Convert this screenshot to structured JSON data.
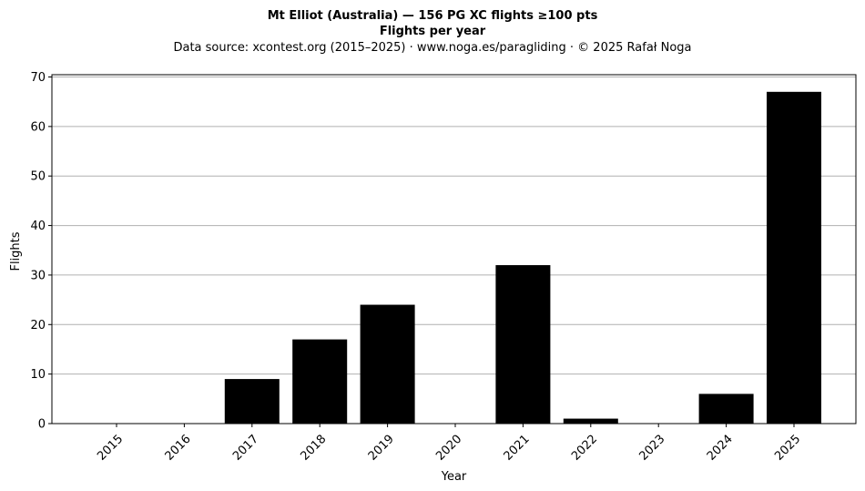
{
  "chart_data": {
    "type": "bar",
    "title": "Mt Elliot (Australia)  —  156 PG XC flights ≥100 pts",
    "title2": "Flights per year",
    "subtitle": "Data source: xcontest.org (2015–2025)  ·  www.noga.es/paragliding  ·  © 2025 Rafał Noga",
    "xlabel": "Year",
    "ylabel": "Flights",
    "categories": [
      "2015",
      "2016",
      "2017",
      "2018",
      "2019",
      "2020",
      "2021",
      "2022",
      "2023",
      "2024",
      "2025"
    ],
    "values": [
      0,
      0,
      9,
      17,
      24,
      0,
      32,
      1,
      0,
      6,
      67
    ],
    "ylim": [
      0,
      70
    ],
    "yticks": [
      0,
      10,
      20,
      30,
      40,
      50,
      60,
      70
    ],
    "grid": "y",
    "bar_color": "#000000",
    "grid_color": "#b0b0b0"
  }
}
